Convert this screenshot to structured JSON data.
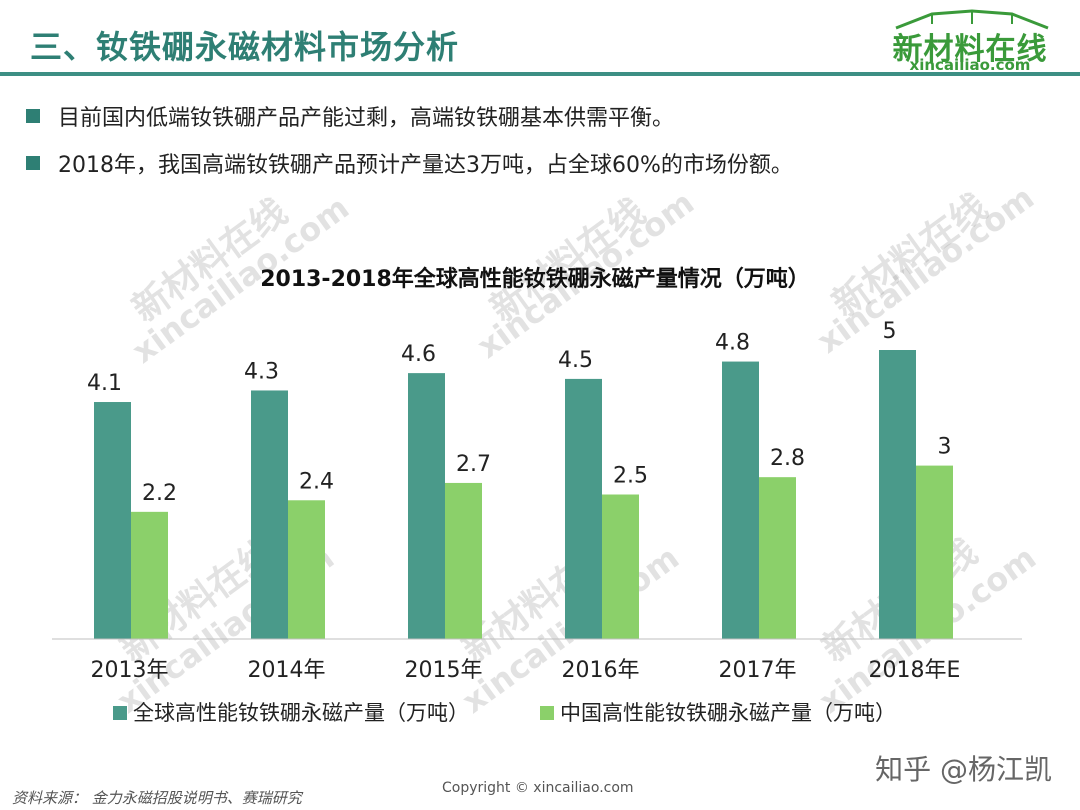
{
  "header": {
    "title": "三、钕铁硼永磁材料市场分析",
    "logo_main": "新材料在线",
    "logo_sub": "xincailiao.com"
  },
  "bullets": [
    "目前国内低端钕铁硼产品产能过剩，高端钕铁硼基本供需平衡。",
    "2018年，我国高端钕铁硼产品预计产量达3万吨，占全球60%的市场份额。"
  ],
  "watermark": {
    "cn": "新材料在线",
    "en": "xincailiao.com"
  },
  "colors": {
    "title": "#2e7f74",
    "series_global": "#4a9a8a",
    "series_china": "#8bd06a"
  },
  "chart_data": {
    "type": "bar",
    "title": "2013-2018年全球高性能钕铁硼永磁产量情况（万吨）",
    "categories": [
      "2013年",
      "2014年",
      "2015年",
      "2016年",
      "2017年",
      "2018年E"
    ],
    "series": [
      {
        "name": "全球高性能钕铁硼永磁产量（万吨）",
        "values": [
          4.1,
          4.3,
          4.6,
          4.5,
          4.8,
          5
        ],
        "color": "#4a9a8a"
      },
      {
        "name": "中国高性能钕铁硼永磁产量（万吨）",
        "values": [
          2.2,
          2.4,
          2.7,
          2.5,
          2.8,
          3
        ],
        "color": "#8bd06a"
      }
    ],
    "data_labels": [
      [
        "4.1",
        "4.3",
        "4.6",
        "4.5",
        "4.8",
        "5"
      ],
      [
        "2.2",
        "2.4",
        "2.7",
        "2.5",
        "2.8",
        "3"
      ]
    ],
    "ylim": [
      0,
      5
    ],
    "grid": false,
    "legend_position": "bottom"
  },
  "footer": {
    "source": "资料来源：  金力永磁招股说明书、赛瑞研究",
    "copyright": "Copyright © xincailiao.com",
    "zhihu": "知乎 @杨江凯"
  }
}
